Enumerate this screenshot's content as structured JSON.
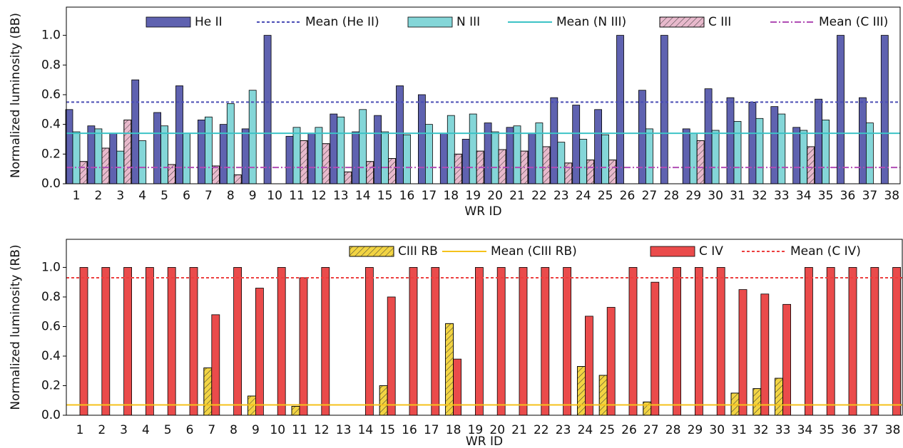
{
  "chart_data": [
    {
      "type": "bar",
      "x_label": "WR ID",
      "y_label": "Normalized luminosity (BB)",
      "categories": [
        "1",
        "2",
        "3",
        "4",
        "5",
        "6",
        "7",
        "8",
        "9",
        "10",
        "11",
        "12",
        "13",
        "14",
        "15",
        "16",
        "17",
        "18",
        "19",
        "20",
        "21",
        "22",
        "23",
        "24",
        "25",
        "26",
        "27",
        "28",
        "29",
        "30",
        "31",
        "32",
        "33",
        "34",
        "35",
        "36",
        "37",
        "38"
      ],
      "series": [
        {
          "name": "He II",
          "color": "#5f62b0",
          "hatch": false,
          "values": [
            0.5,
            0.39,
            0.34,
            0.7,
            0.48,
            0.66,
            0.43,
            0.4,
            0.37,
            1.0,
            0.32,
            0.34,
            0.47,
            0.35,
            0.46,
            0.66,
            0.6,
            0.34,
            0.3,
            0.41,
            0.38,
            0.34,
            0.58,
            0.53,
            0.5,
            1.0,
            0.63,
            1.0,
            0.37,
            0.64,
            0.58,
            0.55,
            0.52,
            0.38,
            0.57,
            1.0,
            0.58,
            1.0
          ]
        },
        {
          "name": "N III",
          "color": "#84d6d8",
          "hatch": false,
          "values": [
            0.35,
            0.37,
            0.22,
            0.29,
            0.39,
            0.34,
            0.45,
            0.54,
            0.63,
            null,
            0.38,
            0.38,
            0.45,
            0.5,
            0.35,
            0.33,
            0.4,
            0.46,
            0.47,
            0.35,
            0.39,
            0.41,
            0.28,
            0.3,
            0.33,
            null,
            0.37,
            null,
            0.34,
            0.36,
            0.42,
            0.44,
            0.47,
            0.36,
            0.43,
            null,
            0.41,
            null
          ]
        },
        {
          "name": "C III",
          "color": "#e8b9cc",
          "hatch": true,
          "values": [
            0.15,
            0.24,
            0.43,
            null,
            0.13,
            null,
            0.12,
            0.06,
            null,
            null,
            0.29,
            0.27,
            0.08,
            0.15,
            0.17,
            null,
            null,
            0.2,
            0.22,
            0.23,
            0.22,
            0.25,
            0.14,
            0.16,
            0.16,
            null,
            null,
            null,
            0.29,
            null,
            null,
            null,
            null,
            0.25,
            null,
            null,
            null,
            null
          ]
        }
      ],
      "means": [
        {
          "name": "Mean (He II)",
          "value": 0.55,
          "color": "#4b4db5",
          "style": "dotted"
        },
        {
          "name": "Mean (N III)",
          "value": 0.34,
          "color": "#3cc3c6",
          "style": "solid"
        },
        {
          "name": "Mean (C III)",
          "value": 0.11,
          "color": "#b04cb4",
          "style": "dashdot"
        }
      ],
      "ylim": [
        0,
        1.19
      ],
      "yticks": [
        {
          "value": 0,
          "label": "0.0"
        },
        {
          "value": 0.2,
          "label": "0.2"
        },
        {
          "value": 0.4,
          "label": "0.4"
        },
        {
          "value": 0.6,
          "label": "0.6"
        },
        {
          "value": 0.8,
          "label": "0.8"
        },
        {
          "value": 1,
          "label": "1.0"
        }
      ],
      "grid": false
    },
    {
      "type": "bar",
      "x_label": "WR ID",
      "y_label": "Normalized luminosity (RB)",
      "categories": [
        "1",
        "2",
        "3",
        "4",
        "5",
        "6",
        "7",
        "8",
        "9",
        "10",
        "11",
        "12",
        "13",
        "14",
        "15",
        "16",
        "17",
        "18",
        "19",
        "20",
        "21",
        "22",
        "23",
        "24",
        "25",
        "26",
        "27",
        "28",
        "29",
        "30",
        "31",
        "32",
        "33",
        "34",
        "35",
        "36",
        "37",
        "38"
      ],
      "series": [
        {
          "name": "CIII RB",
          "color": "#f2d443",
          "hatch": true,
          "values": [
            null,
            null,
            null,
            null,
            null,
            null,
            0.32,
            null,
            0.13,
            null,
            0.06,
            null,
            null,
            null,
            0.2,
            null,
            null,
            0.62,
            null,
            null,
            null,
            null,
            null,
            0.33,
            0.27,
            null,
            0.09,
            null,
            null,
            null,
            0.15,
            0.18,
            0.25,
            null,
            null,
            null,
            null,
            null
          ]
        },
        {
          "name": "C IV",
          "color": "#ea4b4b",
          "hatch": false,
          "values": [
            1.0,
            1.0,
            1.0,
            1.0,
            1.0,
            1.0,
            0.68,
            1.0,
            0.86,
            1.0,
            0.93,
            1.0,
            null,
            1.0,
            0.8,
            1.0,
            1.0,
            0.38,
            1.0,
            1.0,
            1.0,
            1.0,
            1.0,
            0.67,
            0.73,
            1.0,
            0.9,
            1.0,
            1.0,
            1.0,
            0.85,
            0.82,
            0.75,
            1.0,
            1.0,
            1.0,
            1.0,
            1.0
          ]
        }
      ],
      "means": [
        {
          "name": "Mean (CIII RB)",
          "value": 0.07,
          "color": "#f5c21b",
          "style": "solid"
        },
        {
          "name": "Mean (C IV)",
          "value": 0.93,
          "color": "#ec3f3f",
          "style": "dotted"
        }
      ],
      "ylim": [
        0,
        1.19
      ],
      "yticks": [
        {
          "value": 0,
          "label": "0.0"
        },
        {
          "value": 0.2,
          "label": "0.2"
        },
        {
          "value": 0.4,
          "label": "0.4"
        },
        {
          "value": 0.6,
          "label": "0.6"
        },
        {
          "value": 0.8,
          "label": "0.8"
        },
        {
          "value": 1,
          "label": "1.0"
        }
      ],
      "grid": false
    }
  ]
}
